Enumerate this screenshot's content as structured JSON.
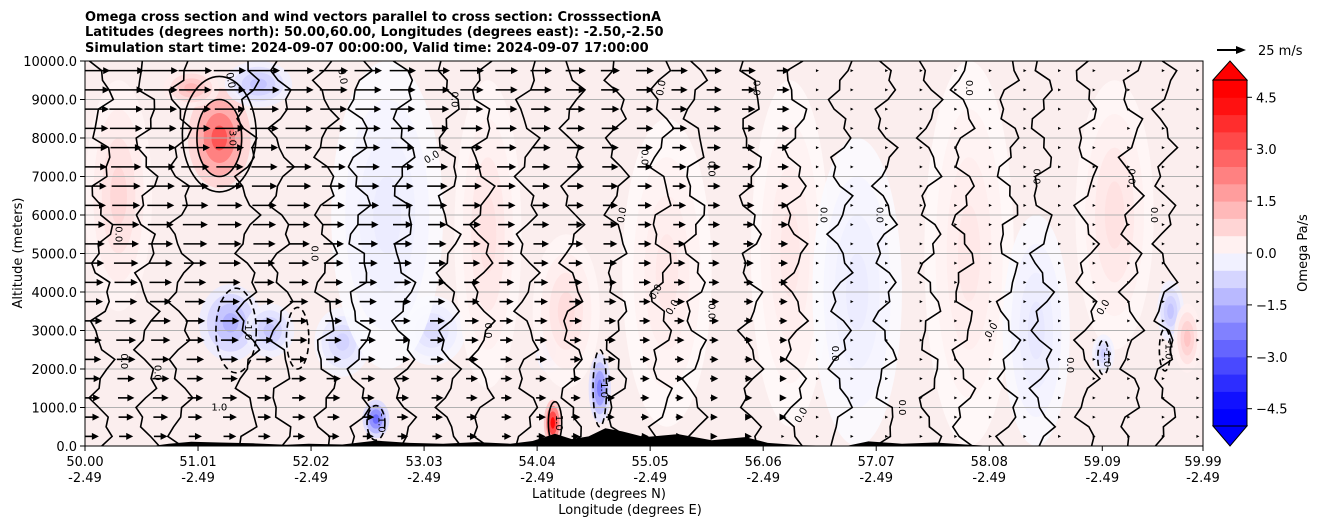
{
  "chart_data": {
    "type": "heatmap",
    "title_lines": [
      "Omega cross section and wind vectors parallel to cross section: CrosssectionA",
      "Latitudes (degrees north): 50.00,60.00, Longitudes (degrees east): -2.50,-2.50",
      "Simulation start time: 2024-09-07 00:00:00, Valid time: 2024-09-07 17:00:00"
    ],
    "xlabel": "Latitude (degrees N)",
    "xlabel2": "Longitude (degrees E)",
    "ylabel": "Altitude (meters)",
    "x_range": [
      50.0,
      59.99
    ],
    "y_range": [
      0,
      10000
    ],
    "x_ticks": [
      {
        "lat": 50.0,
        "lat_label": "50.00",
        "lon_label": "-2.49"
      },
      {
        "lat": 51.01,
        "lat_label": "51.01",
        "lon_label": "-2.49"
      },
      {
        "lat": 52.02,
        "lat_label": "52.02",
        "lon_label": "-2.49"
      },
      {
        "lat": 53.03,
        "lat_label": "53.03",
        "lon_label": "-2.49"
      },
      {
        "lat": 54.04,
        "lat_label": "54.04",
        "lon_label": "-2.49"
      },
      {
        "lat": 55.05,
        "lat_label": "55.05",
        "lon_label": "-2.49"
      },
      {
        "lat": 56.06,
        "lat_label": "56.06",
        "lon_label": "-2.49"
      },
      {
        "lat": 57.07,
        "lat_label": "57.07",
        "lon_label": "-2.49"
      },
      {
        "lat": 58.08,
        "lat_label": "58.08",
        "lon_label": "-2.49"
      },
      {
        "lat": 59.09,
        "lat_label": "59.09",
        "lon_label": "-2.49"
      },
      {
        "lat": 59.99,
        "lat_label": "59.99",
        "lon_label": "-2.49"
      }
    ],
    "y_ticks": [
      {
        "value": 0,
        "label": "0.0"
      },
      {
        "value": 1000,
        "label": "1000.0"
      },
      {
        "value": 2000,
        "label": "2000.0"
      },
      {
        "value": 3000,
        "label": "3000.0"
      },
      {
        "value": 4000,
        "label": "4000.0"
      },
      {
        "value": 5000,
        "label": "5000.0"
      },
      {
        "value": 6000,
        "label": "6000.0"
      },
      {
        "value": 7000,
        "label": "7000.0"
      },
      {
        "value": 8000,
        "label": "8000.0"
      },
      {
        "value": 9000,
        "label": "9000.0"
      },
      {
        "value": 10000,
        "label": "10000.0"
      }
    ],
    "grid": "horizontal",
    "colorbar": {
      "label": "Omega Pa/s",
      "min": -5.0,
      "max": 5.0,
      "extend": "both",
      "tick_values": [
        4.5,
        3.0,
        1.5,
        0.0,
        -1.5,
        -3.0,
        -4.5
      ],
      "tick_labels": [
        "4.5",
        "3.0",
        "1.5",
        "0.0",
        "−1.5",
        "−3.0",
        "−4.5"
      ],
      "levels": [
        -5.0,
        -4.5,
        -4.0,
        -3.5,
        -3.0,
        -2.5,
        -2.0,
        -1.5,
        -1.0,
        -0.5,
        0.0,
        0.5,
        1.0,
        1.5,
        2.0,
        2.5,
        3.0,
        3.5,
        4.0,
        4.5,
        5.0
      ],
      "colors": {
        "negative": "#0000ff",
        "zero": "#ffffff",
        "positive": "#ff0000",
        "terrain": "#000000"
      }
    },
    "quiver_key": {
      "label": "25 m/s",
      "speed": 25
    },
    "omega_anomalies": [
      {
        "lat": 51.2,
        "alt": 8000,
        "value": 3.5,
        "w": 0.28,
        "h": 1300
      },
      {
        "lat": 50.95,
        "alt": 9300,
        "value": 1.5,
        "w": 0.25,
        "h": 500
      },
      {
        "lat": 51.55,
        "alt": 9400,
        "value": -1.2,
        "w": 0.3,
        "h": 600
      },
      {
        "lat": 51.3,
        "alt": 3200,
        "value": -1.6,
        "w": 0.28,
        "h": 1000
      },
      {
        "lat": 51.65,
        "alt": 3000,
        "value": -1.2,
        "w": 0.22,
        "h": 700
      },
      {
        "lat": 52.3,
        "alt": 2700,
        "value": -0.9,
        "w": 0.25,
        "h": 900
      },
      {
        "lat": 52.6,
        "alt": 700,
        "value": -3.0,
        "w": 0.12,
        "h": 500
      },
      {
        "lat": 53.1,
        "alt": 3000,
        "value": -0.7,
        "w": 0.3,
        "h": 900
      },
      {
        "lat": 54.15,
        "alt": 2500,
        "value": -1.1,
        "w": 0.12,
        "h": 600
      },
      {
        "lat": 54.18,
        "alt": 600,
        "value": 5.0,
        "w": 0.08,
        "h": 600
      },
      {
        "lat": 54.6,
        "alt": 1500,
        "value": -2.6,
        "w": 0.1,
        "h": 900
      },
      {
        "lat": 54.3,
        "alt": 3500,
        "value": 0.7,
        "w": 0.3,
        "h": 2000
      },
      {
        "lat": 55.2,
        "alt": 4500,
        "value": 0.5,
        "w": 0.4,
        "h": 4000
      },
      {
        "lat": 56.3,
        "alt": 5000,
        "value": 0.5,
        "w": 0.35,
        "h": 4500
      },
      {
        "lat": 57.9,
        "alt": 5000,
        "value": 0.5,
        "w": 0.4,
        "h": 5000
      },
      {
        "lat": 59.2,
        "alt": 6000,
        "value": 0.6,
        "w": 0.35,
        "h": 3500
      },
      {
        "lat": 59.7,
        "alt": 3500,
        "value": -1.2,
        "w": 0.12,
        "h": 800
      },
      {
        "lat": 59.85,
        "alt": 2800,
        "value": 1.2,
        "w": 0.12,
        "h": 900
      },
      {
        "lat": 59.1,
        "alt": 2400,
        "value": -1.0,
        "w": 0.1,
        "h": 500
      },
      {
        "lat": 50.3,
        "alt": 6500,
        "value": 0.8,
        "w": 0.3,
        "h": 3000
      },
      {
        "lat": 52.7,
        "alt": 6000,
        "value": -0.4,
        "w": 0.5,
        "h": 4000
      },
      {
        "lat": 53.6,
        "alt": 5500,
        "value": 0.6,
        "w": 0.3,
        "h": 4000
      },
      {
        "lat": 56.9,
        "alt": 4000,
        "value": -0.4,
        "w": 0.4,
        "h": 4000
      },
      {
        "lat": 58.5,
        "alt": 3000,
        "value": -0.5,
        "w": 0.3,
        "h": 3000
      }
    ],
    "terrain_profile": [
      {
        "lat": 50.0,
        "alt": 0
      },
      {
        "lat": 50.6,
        "alt": 0
      },
      {
        "lat": 50.75,
        "alt": 60
      },
      {
        "lat": 50.95,
        "alt": 110
      },
      {
        "lat": 51.2,
        "alt": 90
      },
      {
        "lat": 51.5,
        "alt": 70
      },
      {
        "lat": 51.8,
        "alt": 30
      },
      {
        "lat": 52.0,
        "alt": 60
      },
      {
        "lat": 52.3,
        "alt": 40
      },
      {
        "lat": 52.6,
        "alt": 140
      },
      {
        "lat": 52.9,
        "alt": 80
      },
      {
        "lat": 53.2,
        "alt": 60
      },
      {
        "lat": 53.5,
        "alt": 100
      },
      {
        "lat": 53.8,
        "alt": 60
      },
      {
        "lat": 54.0,
        "alt": 130
      },
      {
        "lat": 54.2,
        "alt": 320
      },
      {
        "lat": 54.35,
        "alt": 180
      },
      {
        "lat": 54.5,
        "alt": 250
      },
      {
        "lat": 54.65,
        "alt": 460
      },
      {
        "lat": 54.8,
        "alt": 380
      },
      {
        "lat": 55.0,
        "alt": 230
      },
      {
        "lat": 55.3,
        "alt": 310
      },
      {
        "lat": 55.6,
        "alt": 150
      },
      {
        "lat": 55.9,
        "alt": 230
      },
      {
        "lat": 56.1,
        "alt": 80
      },
      {
        "lat": 56.4,
        "alt": 20
      },
      {
        "lat": 56.8,
        "alt": 0
      },
      {
        "lat": 57.0,
        "alt": 120
      },
      {
        "lat": 57.3,
        "alt": 60
      },
      {
        "lat": 57.6,
        "alt": 90
      },
      {
        "lat": 57.9,
        "alt": 30
      },
      {
        "lat": 58.1,
        "alt": 0
      },
      {
        "lat": 59.99,
        "alt": 0
      }
    ],
    "contours_zero_lat": [
      50.15,
      50.55,
      50.85,
      51.45,
      51.75,
      52.15,
      52.45,
      52.85,
      53.25,
      53.55,
      53.95,
      54.35,
      54.75,
      55.15,
      55.45,
      55.95,
      56.35,
      56.75,
      57.15,
      57.55,
      57.85,
      58.25,
      58.55,
      58.95,
      59.35,
      59.65
    ],
    "contours_closed": [
      {
        "lat": 51.2,
        "alt": 8000,
        "dlat": 0.2,
        "dalt": 1000,
        "dash": false,
        "label": "3.0"
      },
      {
        "lat": 51.2,
        "alt": 8100,
        "dlat": 0.33,
        "dalt": 1500,
        "dash": false,
        "label": ""
      },
      {
        "lat": 51.35,
        "alt": 3000,
        "dlat": 0.18,
        "dalt": 1100,
        "dash": true,
        "label": "-1.0"
      },
      {
        "lat": 51.9,
        "alt": 2800,
        "dlat": 0.1,
        "dalt": 800,
        "dash": true,
        "label": ""
      },
      {
        "lat": 52.6,
        "alt": 600,
        "dlat": 0.08,
        "dalt": 450,
        "dash": true,
        "label": "-1.0"
      },
      {
        "lat": 54.2,
        "alt": 600,
        "dlat": 0.06,
        "dalt": 550,
        "dash": false,
        "label": "1.0"
      },
      {
        "lat": 54.6,
        "alt": 1500,
        "dlat": 0.06,
        "dalt": 1000,
        "dash": true,
        "label": "-1.0"
      },
      {
        "lat": 59.1,
        "alt": 2300,
        "dlat": 0.05,
        "dalt": 450,
        "dash": true,
        "label": "-1.0"
      },
      {
        "lat": 59.65,
        "alt": 2500,
        "dlat": 0.05,
        "dalt": 550,
        "dash": true,
        "label": "-1.0"
      }
    ],
    "contour_labels": [
      {
        "lat": 51.3,
        "alt": 9500,
        "text": "0.0",
        "rot": 80
      },
      {
        "lat": 52.3,
        "alt": 9600,
        "text": "0.0",
        "rot": 80
      },
      {
        "lat": 53.1,
        "alt": 7500,
        "text": "0.0",
        "rot": -30
      },
      {
        "lat": 53.3,
        "alt": 9000,
        "text": "0.0",
        "rot": 90
      },
      {
        "lat": 54.8,
        "alt": 6000,
        "text": "0.0",
        "rot": -80
      },
      {
        "lat": 55.0,
        "alt": 7500,
        "text": "0.0",
        "rot": 90
      },
      {
        "lat": 55.6,
        "alt": 7200,
        "text": "0.0",
        "rot": 90
      },
      {
        "lat": 55.15,
        "alt": 9300,
        "text": "0.0",
        "rot": -80
      },
      {
        "lat": 56.0,
        "alt": 9300,
        "text": "0.0",
        "rot": 90
      },
      {
        "lat": 56.6,
        "alt": 6000,
        "text": "0.0",
        "rot": 90
      },
      {
        "lat": 57.1,
        "alt": 6000,
        "text": "0.0",
        "rot": 90
      },
      {
        "lat": 57.9,
        "alt": 9300,
        "text": "0.0",
        "rot": 90
      },
      {
        "lat": 58.5,
        "alt": 7000,
        "text": "0.0",
        "rot": 90
      },
      {
        "lat": 59.35,
        "alt": 7000,
        "text": "0.0",
        "rot": 90
      },
      {
        "lat": 59.55,
        "alt": 6000,
        "text": "0.0",
        "rot": 90
      },
      {
        "lat": 50.3,
        "alt": 5500,
        "text": "0.0",
        "rot": 90
      },
      {
        "lat": 52.05,
        "alt": 5000,
        "text": "0.0",
        "rot": 90
      },
      {
        "lat": 51.2,
        "alt": 1000,
        "text": "1.0",
        "rot": 0
      },
      {
        "lat": 53.6,
        "alt": 3000,
        "text": "0.0",
        "rot": 90
      },
      {
        "lat": 55.25,
        "alt": 3600,
        "text": "0.0",
        "rot": -60
      },
      {
        "lat": 55.6,
        "alt": 3500,
        "text": "0.0",
        "rot": 90
      },
      {
        "lat": 56.7,
        "alt": 2400,
        "text": "0.0",
        "rot": 90
      },
      {
        "lat": 58.8,
        "alt": 2100,
        "text": "0.0",
        "rot": 90
      },
      {
        "lat": 57.3,
        "alt": 1000,
        "text": "0.0",
        "rot": 90
      },
      {
        "lat": 56.4,
        "alt": 800,
        "text": "0.0",
        "rot": -60
      },
      {
        "lat": 50.35,
        "alt": 2200,
        "text": "0.0",
        "rot": 90
      },
      {
        "lat": 50.65,
        "alt": 1900,
        "text": "0.0",
        "rot": 90
      },
      {
        "lat": 55.1,
        "alt": 4000,
        "text": "0.0",
        "rot": -60
      },
      {
        "lat": 58.1,
        "alt": 3000,
        "text": "0.0",
        "rot": -60
      },
      {
        "lat": 59.1,
        "alt": 3600,
        "text": "0.0",
        "rot": -60
      }
    ]
  }
}
